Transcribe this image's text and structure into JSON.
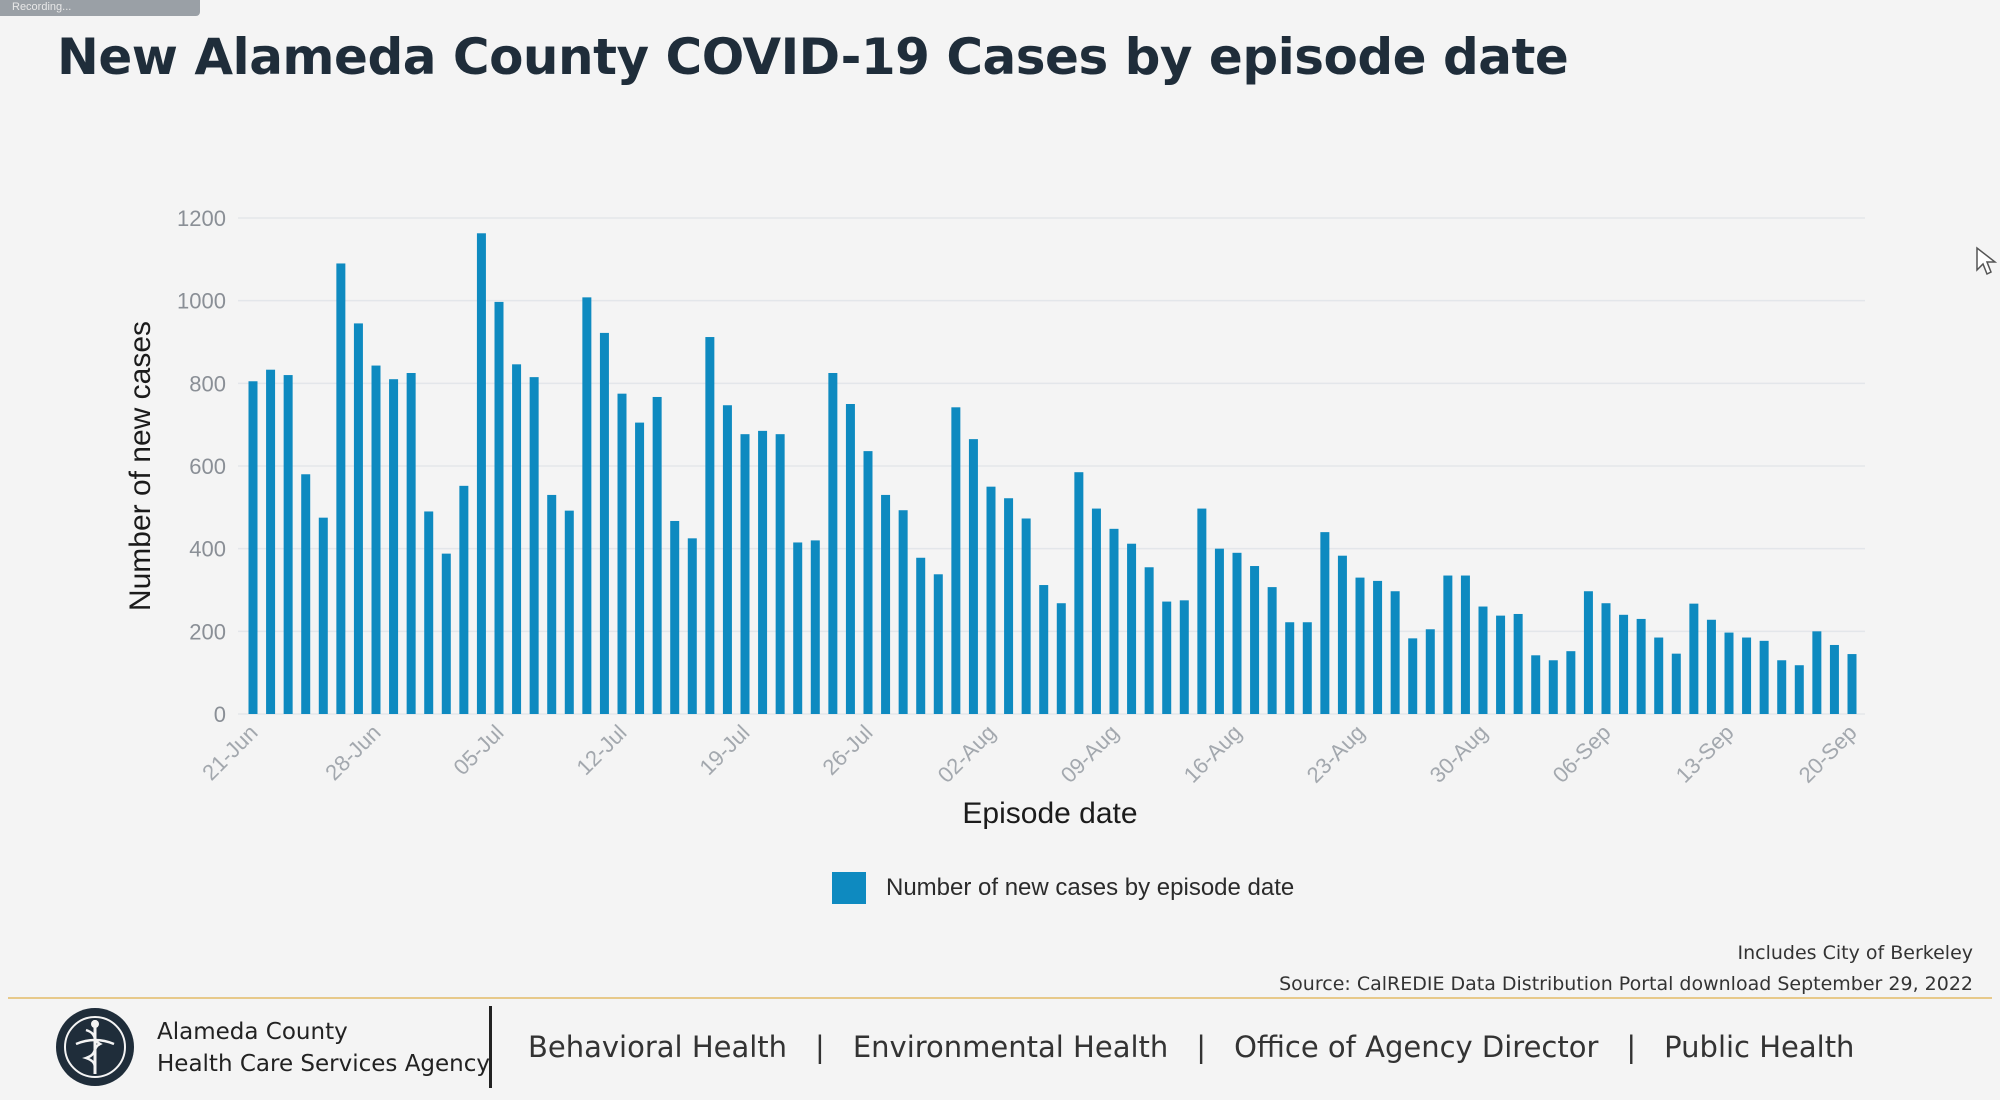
{
  "title": "New Alameda County COVID-19 Cases by episode date",
  "recording_tab": "Recording...",
  "chart_data": {
    "type": "bar",
    "title": "New Alameda County COVID-19 Cases by episode date",
    "xlabel": "Episode date",
    "ylabel": "Number of new cases",
    "ylim": [
      0,
      1200
    ],
    "yticks": [
      0,
      200,
      400,
      600,
      800,
      1000,
      1200
    ],
    "grid": true,
    "legend_position": "bottom",
    "start_date": "21-Jun",
    "tick_labels": [
      "21-Jun",
      "28-Jun",
      "05-Jul",
      "12-Jul",
      "19-Jul",
      "26-Jul",
      "02-Aug",
      "09-Aug",
      "16-Aug",
      "23-Aug",
      "30-Aug",
      "06-Sep",
      "13-Sep",
      "20-Sep"
    ],
    "series": [
      {
        "name": "Number of new cases by episode date",
        "color": "#0e8ac0",
        "values": [
          805,
          833,
          820,
          580,
          475,
          1090,
          945,
          843,
          810,
          825,
          490,
          388,
          552,
          1163,
          997,
          846,
          815,
          530,
          492,
          1008,
          922,
          775,
          705,
          767,
          467,
          425,
          912,
          747,
          677,
          685,
          677,
          415,
          420,
          825,
          750,
          636,
          530,
          493,
          378,
          338,
          742,
          665,
          550,
          522,
          473,
          312,
          268,
          585,
          497,
          448,
          412,
          355,
          272,
          275,
          497,
          400,
          390,
          358,
          307,
          222,
          222,
          440,
          383,
          330,
          322,
          297,
          183,
          205,
          335,
          335,
          260,
          238,
          242,
          142,
          130,
          152,
          297,
          268,
          240,
          230,
          185,
          146,
          267,
          228,
          197,
          185,
          177,
          130,
          118,
          200,
          167,
          145
        ]
      }
    ]
  },
  "legend": {
    "label": "Number of new cases by episode date"
  },
  "notes": {
    "includes": "Includes City of Berkeley",
    "source": "Source: CalREDIE Data Distribution Portal download September 29, 2022"
  },
  "footer": {
    "agency_line1": "Alameda County",
    "agency_line2": "Health Care Services Agency",
    "nav": [
      "Behavioral Health",
      "Environmental Health",
      "Office of Agency Director",
      "Public Health"
    ]
  },
  "colors": {
    "bar": "#0e8ac0",
    "title": "#1f2d3a",
    "divider": "#e7c98a"
  }
}
